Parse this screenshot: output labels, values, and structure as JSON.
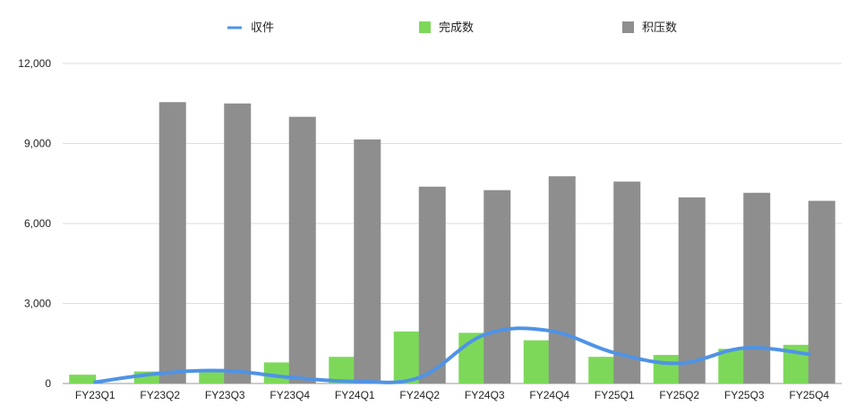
{
  "chart_data": {
    "type": "bar",
    "categories": [
      "FY23Q1",
      "FY23Q2",
      "FY23Q3",
      "FY23Q4",
      "FY24Q1",
      "FY24Q2",
      "FY24Q3",
      "FY24Q4",
      "FY25Q1",
      "FY25Q2",
      "FY25Q3",
      "FY25Q4"
    ],
    "series": [
      {
        "name": "収件",
        "kind": "line",
        "color": "#4f93e6",
        "values": [
          50,
          380,
          480,
          230,
          80,
          230,
          1830,
          1980,
          1150,
          760,
          1330,
          1100
        ]
      },
      {
        "name": "完成数",
        "kind": "bar",
        "color": "#7dd85a",
        "values": [
          330,
          450,
          500,
          790,
          1000,
          1950,
          1900,
          1620,
          1000,
          1070,
          1300,
          1450
        ]
      },
      {
        "name": "积压数",
        "kind": "bar",
        "color": "#8e8e8e",
        "values": [
          0,
          10550,
          10500,
          10000,
          9150,
          7380,
          7250,
          7770,
          7570,
          6980,
          7150,
          6850
        ]
      }
    ],
    "yticks": [
      "0",
      "3,000",
      "6,000",
      "9,000",
      "12,000"
    ],
    "ylim": [
      0,
      12000
    ],
    "grid": true,
    "legend_position": "top"
  }
}
